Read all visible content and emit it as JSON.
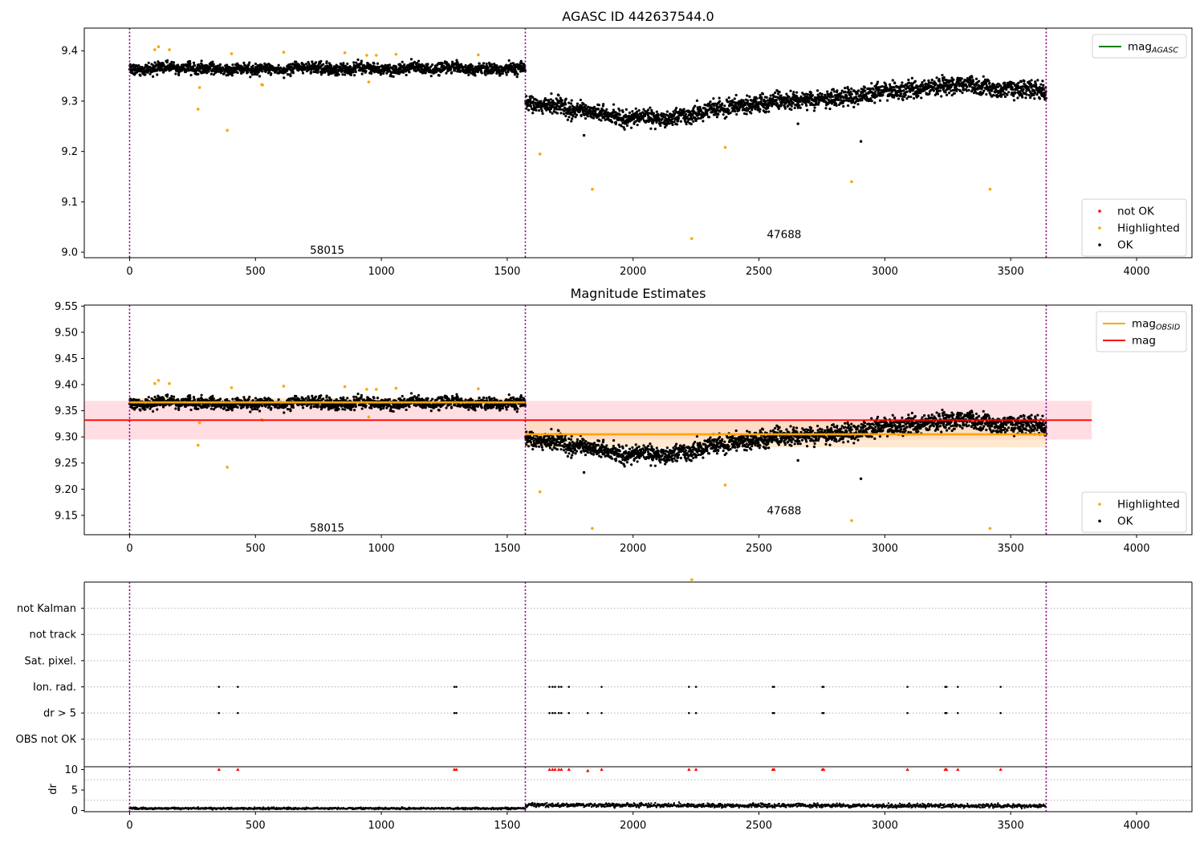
{
  "colors": {
    "ok": "#000000",
    "highlighted": "#ffa500",
    "not_ok": "#ff0000",
    "mag": "#ff0000",
    "mag_obsid": "#ffa500",
    "mag_agasc": "#008000",
    "separator": "#800080",
    "band_mag": "#ffb6c1",
    "band_obsid": "#ffdab3"
  },
  "chart_data": [
    {
      "type": "scatter",
      "title": "AGASC ID 442637544.0",
      "xlim": [
        -180,
        4220
      ],
      "ylim": [
        8.989,
        9.445
      ],
      "xticks": [
        0,
        500,
        1000,
        1500,
        2000,
        2500,
        3000,
        3500,
        4000
      ],
      "yticks": [
        "9.0",
        "9.1",
        "9.2",
        "9.3",
        "9.4"
      ],
      "grid": false,
      "separators": [
        0,
        1572,
        3641
      ],
      "observation_labels": [
        {
          "text": "58015",
          "x": 785,
          "y": 9.005
        },
        {
          "text": "47688",
          "x": 2600,
          "y": 9.036
        }
      ],
      "segments": [
        {
          "obsid": "58015",
          "x_range": [
            0,
            1572
          ],
          "mean": 9.364,
          "noise": 0.008
        },
        {
          "obsid": "47688",
          "x_range": [
            1572,
            3641
          ],
          "profile": [
            [
              1572,
              9.298
            ],
            [
              1800,
              9.28
            ],
            [
              2100,
              9.265
            ],
            [
              2400,
              9.29
            ],
            [
              2700,
              9.305
            ],
            [
              3000,
              9.318
            ],
            [
              3300,
              9.335
            ],
            [
              3641,
              9.318
            ]
          ],
          "noise": 0.012
        }
      ],
      "highlighted": [
        [
          100,
          9.402
        ],
        [
          115,
          9.408
        ],
        [
          158,
          9.402
        ],
        [
          272,
          9.284
        ],
        [
          278,
          9.327
        ],
        [
          388,
          9.242
        ],
        [
          405,
          9.394
        ],
        [
          525,
          9.333
        ],
        [
          528,
          9.332
        ],
        [
          612,
          9.397
        ],
        [
          855,
          9.396
        ],
        [
          942,
          9.391
        ],
        [
          950,
          9.338
        ],
        [
          980,
          9.391
        ],
        [
          1058,
          9.393
        ],
        [
          1385,
          9.392
        ],
        [
          1630,
          9.195
        ],
        [
          1838,
          9.125
        ],
        [
          2233,
          9.027
        ],
        [
          2366,
          9.208
        ],
        [
          2868,
          9.14
        ],
        [
          3418,
          9.125
        ]
      ],
      "outliers_ok": [
        [
          1805,
          9.232
        ],
        [
          2905,
          9.22
        ],
        [
          2655,
          9.255
        ]
      ],
      "legends": [
        {
          "position": "upper right",
          "entries": [
            {
              "label": "mag",
              "subscript": "AGASC",
              "kind": "line",
              "color": "#008000"
            }
          ]
        },
        {
          "position": "lower right",
          "entries": [
            {
              "label": "not OK",
              "kind": "marker",
              "color": "#ff0000"
            },
            {
              "label": "Highlighted",
              "kind": "marker",
              "color": "#ffa500"
            },
            {
              "label": "OK",
              "kind": "marker",
              "color": "#000000"
            }
          ]
        }
      ]
    },
    {
      "type": "scatter",
      "title": "Magnitude Estimates",
      "xlim": [
        -180,
        4220
      ],
      "ylim": [
        9.113,
        9.552
      ],
      "xticks": [
        0,
        500,
        1000,
        1500,
        2000,
        2500,
        3000,
        3500,
        4000
      ],
      "yticks": [
        "9.15",
        "9.20",
        "9.25",
        "9.30",
        "9.35",
        "9.40",
        "9.45",
        "9.50",
        "9.55"
      ],
      "grid": false,
      "separators": [
        0,
        1572,
        3641
      ],
      "observation_labels": [
        {
          "text": "58015",
          "x": 785,
          "y": 9.127
        },
        {
          "text": "47688",
          "x": 2600,
          "y": 9.16
        }
      ],
      "mag_line": {
        "value": 9.332,
        "band": [
          9.295,
          9.369
        ],
        "x_range": [
          -180,
          3822
        ]
      },
      "obsid_lines": [
        {
          "x_range": [
            0,
            1572
          ],
          "value": 9.366,
          "band": [
            9.358,
            9.374
          ]
        },
        {
          "x_range": [
            1572,
            3641
          ],
          "value": 9.305,
          "band": [
            9.28,
            9.33
          ]
        }
      ],
      "legends": [
        {
          "position": "upper right",
          "entries": [
            {
              "label": "mag",
              "subscript": "OBSID",
              "kind": "line",
              "color": "#ffa500"
            },
            {
              "label": "mag",
              "kind": "line",
              "color": "#ff0000"
            }
          ]
        },
        {
          "position": "lower right",
          "entries": [
            {
              "label": "Highlighted",
              "kind": "marker",
              "color": "#ffa500"
            },
            {
              "label": "OK",
              "kind": "marker",
              "color": "#000000"
            }
          ]
        }
      ]
    },
    {
      "type": "scatter",
      "title": "",
      "xlim": [
        -180,
        4220
      ],
      "categories": [
        "not Kalman",
        "not track",
        "Sat. pixel.",
        "Ion. rad.",
        "dr > 5",
        "OBS not OK"
      ],
      "flag_points": {
        "Ion. rad.": [
          355,
          430,
          1290,
          1298,
          1668,
          1680,
          1690,
          1705,
          1715,
          1745,
          1875,
          2222,
          2250,
          2555,
          2560,
          2752,
          2757,
          3090,
          3240,
          3245,
          3290,
          3460
        ],
        "dr > 5": [
          355,
          430,
          1290,
          1298,
          1668,
          1680,
          1690,
          1705,
          1715,
          1745,
          1820,
          1875,
          2222,
          2250,
          2555,
          2560,
          2752,
          2757,
          3090,
          3240,
          3245,
          3290,
          3460
        ]
      },
      "separators": [
        0,
        1572,
        3641
      ]
    },
    {
      "type": "scatter",
      "title": "",
      "ylabel": "dr",
      "xlim": [
        -180,
        4220
      ],
      "ylim": [
        -0.3,
        10.7
      ],
      "xticks": [
        0,
        500,
        1000,
        1500,
        2000,
        2500,
        3000,
        3500,
        4000
      ],
      "yticks": [
        0,
        5,
        10
      ],
      "capped_at": 10,
      "dr_ok_level": [
        [
          0,
          0.5
        ],
        [
          1572,
          0.5
        ],
        [
          1573,
          1.3
        ],
        [
          3641,
          1.1
        ]
      ],
      "dr_spikes": [
        [
          355,
          10
        ],
        [
          430,
          10
        ],
        [
          1290,
          10
        ],
        [
          1298,
          10
        ],
        [
          1668,
          10
        ],
        [
          1680,
          10
        ],
        [
          1690,
          10
        ],
        [
          1705,
          10
        ],
        [
          1715,
          10
        ],
        [
          1745,
          10
        ],
        [
          1820,
          9.7
        ],
        [
          1875,
          10
        ],
        [
          2222,
          10
        ],
        [
          2250,
          10
        ],
        [
          2555,
          10
        ],
        [
          2560,
          10
        ],
        [
          2752,
          10
        ],
        [
          2757,
          10
        ],
        [
          3090,
          10
        ],
        [
          3240,
          10
        ],
        [
          3245,
          10
        ],
        [
          3290,
          10
        ],
        [
          3460,
          10
        ]
      ],
      "separators": [
        0,
        1572,
        3641
      ]
    }
  ]
}
